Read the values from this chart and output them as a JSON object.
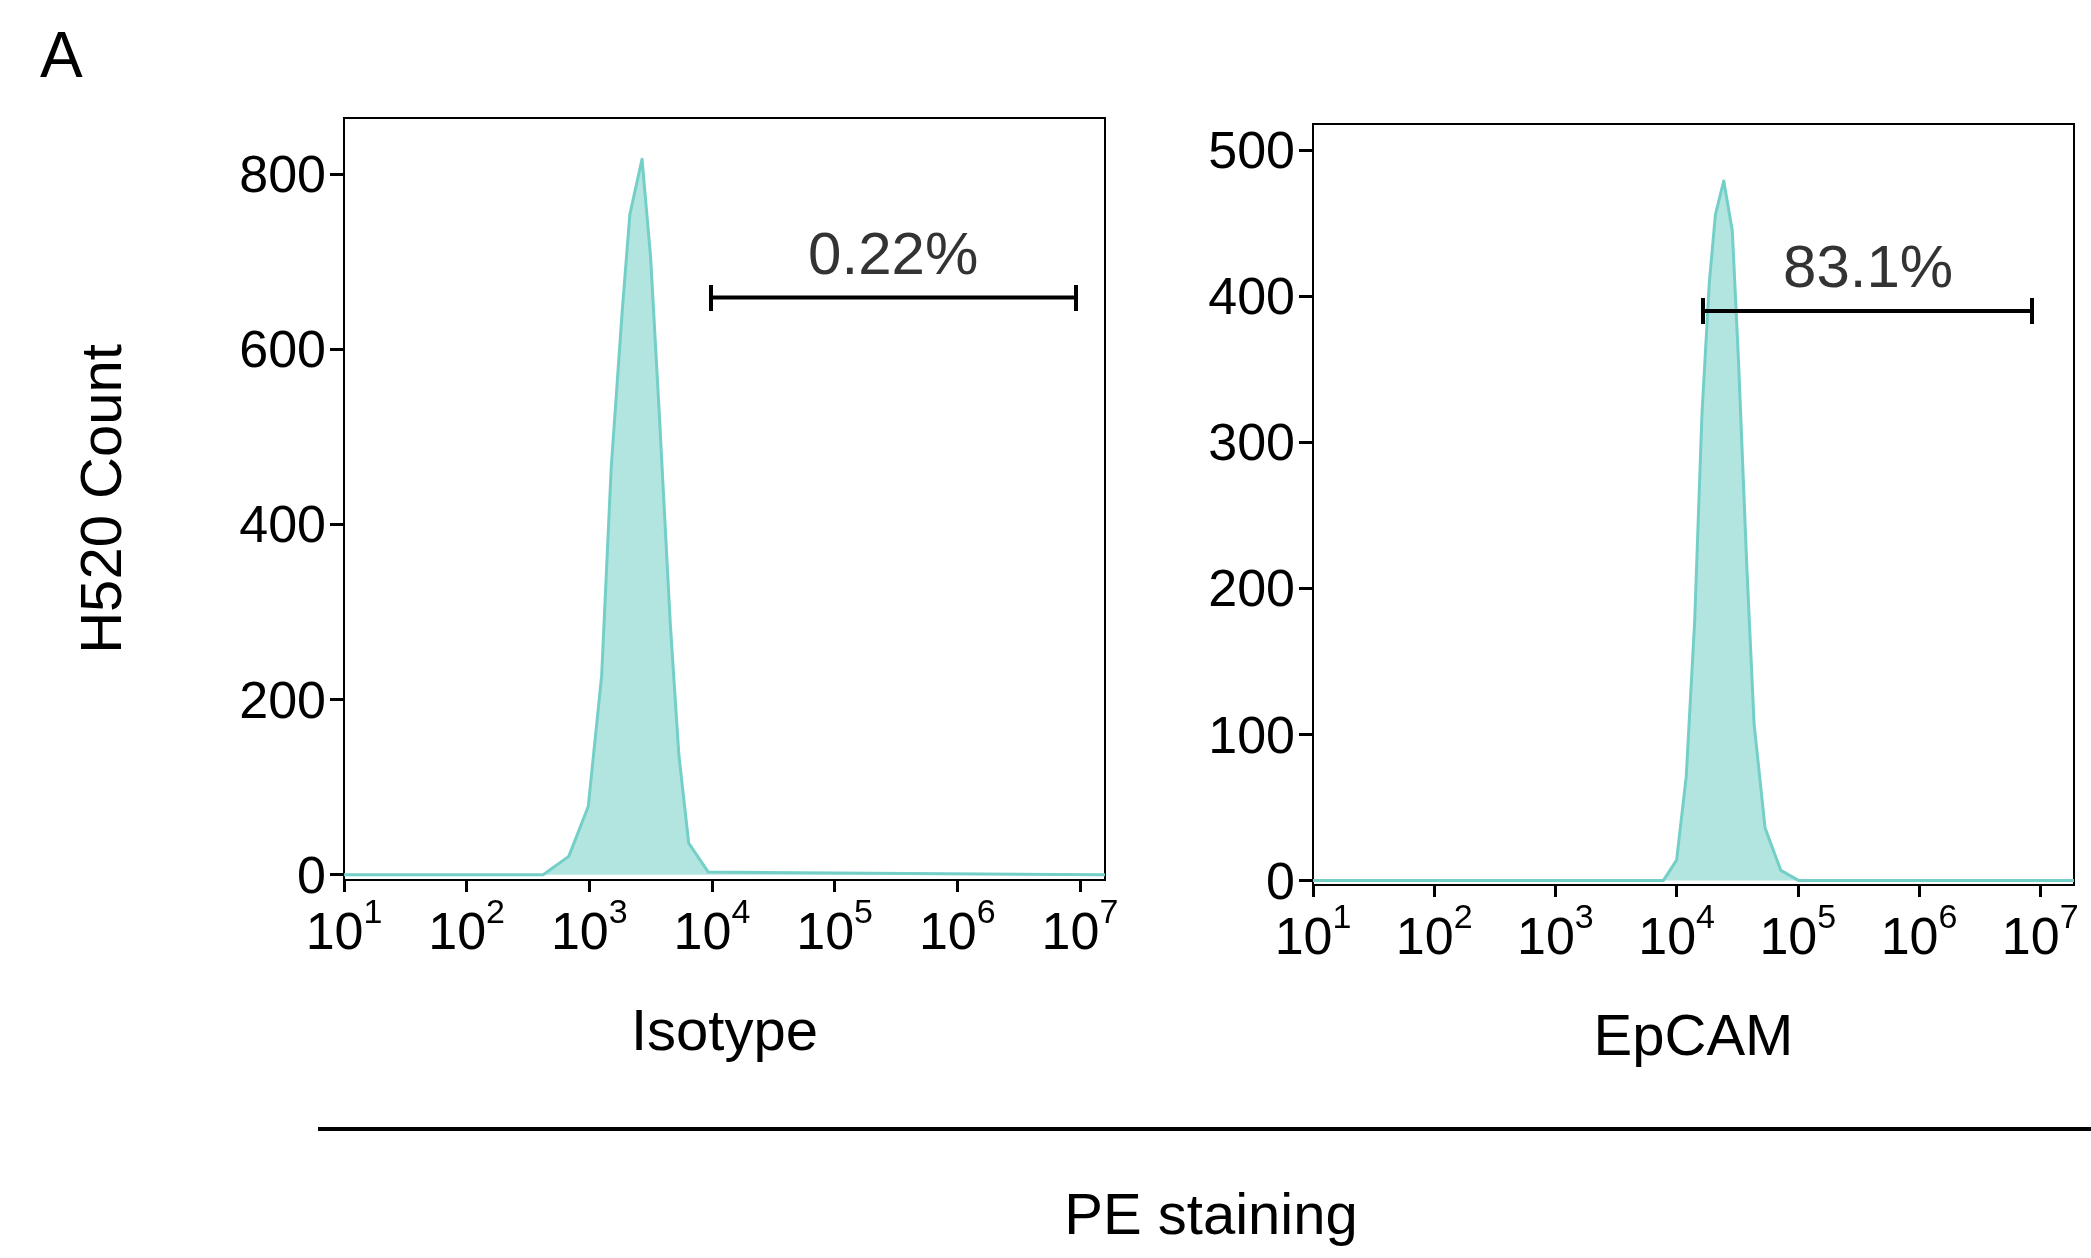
{
  "chart_data": [
    {
      "type": "area",
      "xlabel": "Isotype",
      "ylabel": "H520 Count",
      "log": "x",
      "grid": false,
      "xlim": [
        10,
        16000000
      ],
      "ylim": [
        -6,
        864
      ],
      "xticks": [
        {
          "value": 10,
          "label": "10$^{1}$"
        },
        {
          "value": 100,
          "label": "10$^{2}$"
        },
        {
          "value": 1000,
          "label": "10$^{3}$"
        },
        {
          "value": 10000,
          "label": "10$^{4}$"
        },
        {
          "value": 100000,
          "label": "10$^{5}$"
        },
        {
          "value": 1000000,
          "label": "10$^{6}$"
        },
        {
          "value": 10000000,
          "label": "10$^{7}$"
        }
      ],
      "yticks": [
        0,
        200,
        400,
        600,
        800
      ],
      "annotations": [
        "A",
        "PE staining",
        {
          "text": "0.22%",
          "x": 300000,
          "y": 659
        }
      ],
      "series": [
        {
          "color": "#74cfc7",
          "x": [
            10,
            420,
            680,
            980,
            1260,
            1510,
            1860,
            2140,
            2690,
            3160,
            3720,
            4570,
            5370,
            6460,
            9330,
            16000000
          ],
          "values": [
            0,
            0,
            21,
            78,
            227,
            466,
            646,
            754,
            817,
            705,
            526,
            287,
            137,
            36,
            3,
            0
          ]
        },
        {
          "type": "line",
          "color": "#000000",
          "x": [
            9800,
            9300000
          ],
          "values": [
            659,
            659
          ]
        }
      ]
    },
    {
      "type": "area",
      "xlabel": "EpCAM",
      "log": "x",
      "grid": false,
      "xlim": [
        10,
        19000000
      ],
      "ylim": [
        -3,
        518
      ],
      "xticks": [
        {
          "value": 10,
          "label": "10$^{1}$"
        },
        {
          "value": 100,
          "label": "10$^{2}$"
        },
        {
          "value": 1000,
          "label": "10$^{3}$"
        },
        {
          "value": 10000,
          "label": "10$^{4}$"
        },
        {
          "value": 100000,
          "label": "10$^{5}$"
        },
        {
          "value": 1000000,
          "label": "10$^{6}$"
        },
        {
          "value": 10000000,
          "label": "10$^{7}$"
        }
      ],
      "yticks": [
        0,
        100,
        200,
        300,
        400,
        500
      ],
      "annotations": [
        {
          "text": "83.1%",
          "x": 380000,
          "y": 390
        }
      ],
      "series": [
        {
          "color": "#74cfc7",
          "x": [
            10,
            7760,
            10000,
            12000,
            14100,
            16200,
            18600,
            20900,
            24500,
            28800,
            32400,
            38000,
            43600,
            53700,
            72400,
            102000,
            19000000
          ],
          "values": [
            0,
            0,
            14,
            71,
            178,
            320,
            409,
            456,
            479,
            445,
            356,
            214,
            107,
            36,
            7,
            0,
            0
          ]
        },
        {
          "type": "line",
          "color": "#000000",
          "x": [
            16600,
            8500000
          ],
          "values": [
            390,
            390
          ]
        }
      ]
    }
  ]
}
